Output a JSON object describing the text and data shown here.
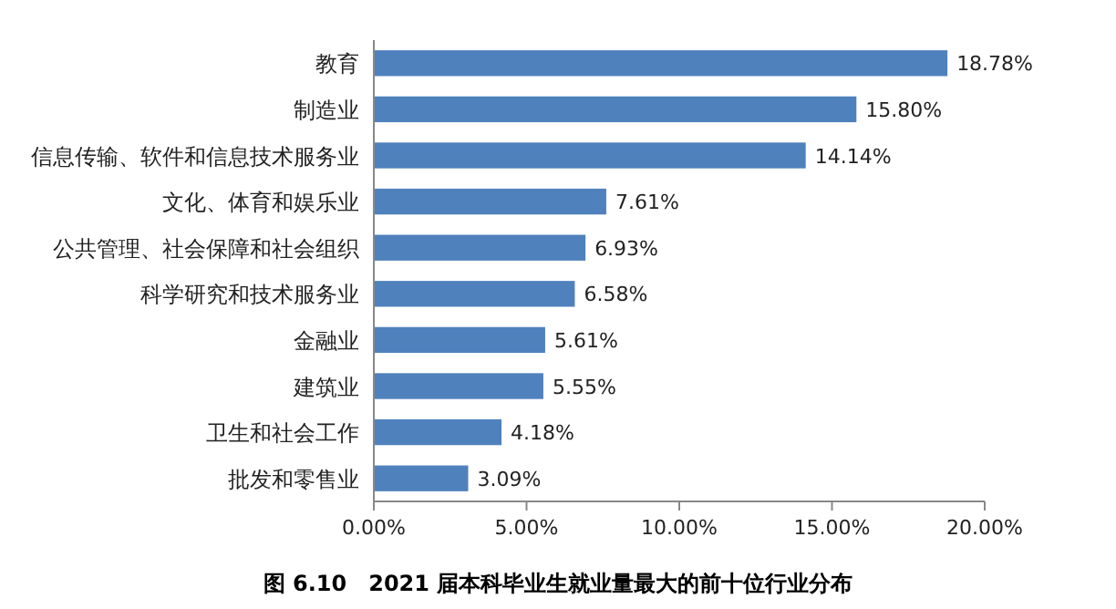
{
  "chart_data": {
    "type": "bar",
    "orientation": "horizontal",
    "title": "图 6.10　2021 届本科毕业生就业量最大的前十位行业分布",
    "categories": [
      "教育",
      "制造业",
      "信息传输、软件和信息技术服务业",
      "文化、体育和娱乐业",
      "公共管理、社会保障和社会组织",
      "科学研究和技术服务业",
      "金融业",
      "建筑业",
      "卫生和社会工作",
      "批发和零售业"
    ],
    "values": [
      18.78,
      15.8,
      14.14,
      7.61,
      6.93,
      6.58,
      5.61,
      5.55,
      4.18,
      3.09
    ],
    "value_labels": [
      "18.78%",
      "15.80%",
      "14.14%",
      "7.61%",
      "6.93%",
      "6.58%",
      "5.61%",
      "5.55%",
      "4.18%",
      "3.09%"
    ],
    "color": "#4f81bd",
    "xlim": [
      0,
      20
    ],
    "xticks": [
      {
        "value": 0,
        "label": "0.00%"
      },
      {
        "value": 5,
        "label": "5.00%"
      },
      {
        "value": 10,
        "label": "10.00%"
      },
      {
        "value": 15,
        "label": "15.00%"
      },
      {
        "value": 20,
        "label": "20.00%"
      }
    ]
  }
}
